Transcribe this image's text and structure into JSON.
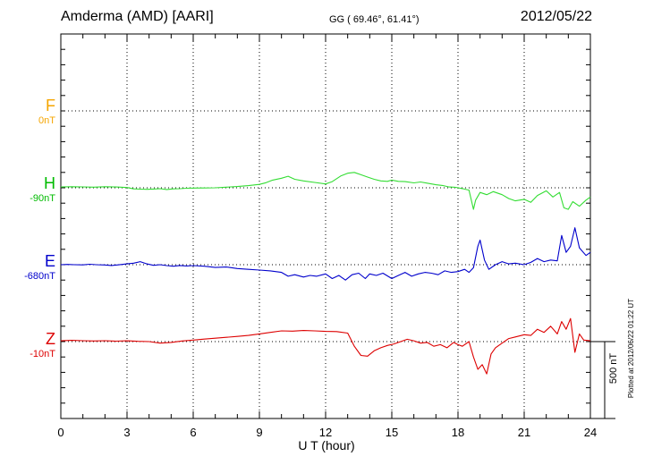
{
  "header": {
    "station": "Amderma (AMD)  [AARI]",
    "coords": "GG ( 69.46°,  61.41°)",
    "date": "2012/05/22"
  },
  "components": [
    {
      "letter": "F",
      "offset": "0nT",
      "color": "#f5a500"
    },
    {
      "letter": "H",
      "offset": "-90nT",
      "color": "#00bb00"
    },
    {
      "letter": "E",
      "offset": "-680nT",
      "color": "#0000cc"
    },
    {
      "letter": "Z",
      "offset": "-10nT",
      "color": "#dd0000"
    }
  ],
  "axis": {
    "xlabel": "U T (hour)",
    "scale_label": "500 nT",
    "plotted_note": "Plotted at 2012/06/22 01:22 UT"
  },
  "chart_data": {
    "type": "line",
    "xlabel": "U T (hour)",
    "xlim": [
      0,
      24
    ],
    "x_ticks": [
      "0",
      "3",
      "6",
      "9",
      "12",
      "15",
      "18",
      "21",
      "24"
    ],
    "y_unit": "nT",
    "scale_bar_nT": 500,
    "grid": true,
    "series": [
      {
        "name": "H",
        "color": "#33dd33",
        "x": [
          0,
          0.5,
          1,
          1.5,
          2,
          2.5,
          3,
          3.3,
          3.6,
          3.9,
          4.2,
          4.5,
          4.8,
          5.1,
          5.4,
          5.7,
          6,
          6.5,
          7,
          7.5,
          8,
          8.5,
          9,
          9.3,
          9.6,
          10,
          10.3,
          10.6,
          11,
          11.5,
          12,
          12.3,
          12.7,
          13,
          13.3,
          13.6,
          13.9,
          14.2,
          14.5,
          14.8,
          15,
          15.3,
          15.6,
          16,
          16.3,
          16.6,
          17,
          17.3,
          17.6,
          17.9,
          18.2,
          18.5,
          18.7,
          18.8,
          19,
          19.3,
          19.6,
          20,
          20.3,
          20.6,
          21,
          21.3,
          21.6,
          22,
          22.3,
          22.6,
          22.8,
          23,
          23.2,
          23.5,
          23.8,
          24
        ],
        "values": [
          5,
          7,
          6,
          4,
          7,
          5,
          2,
          -7,
          -9,
          -10,
          -8,
          -6,
          -11,
          -7,
          -6,
          -3,
          -2,
          -1,
          0,
          4,
          8,
          14,
          22,
          33,
          50,
          62,
          75,
          55,
          45,
          35,
          25,
          40,
          78,
          95,
          100,
          85,
          70,
          55,
          45,
          42,
          50,
          42,
          40,
          32,
          38,
          30,
          20,
          15,
          5,
          3,
          -5,
          -15,
          -140,
          -80,
          -30,
          -45,
          -25,
          -45,
          -70,
          -85,
          -75,
          -95,
          -50,
          -20,
          -60,
          -30,
          -130,
          -140,
          -90,
          -120,
          -80,
          -60
        ]
      },
      {
        "name": "E",
        "color": "#0000cc",
        "x": [
          0,
          0.3,
          0.6,
          1,
          1.3,
          1.6,
          2,
          2.3,
          2.6,
          3,
          3.3,
          3.6,
          3.9,
          4.2,
          4.5,
          4.8,
          5.1,
          5.4,
          5.7,
          6,
          6.5,
          7,
          7.5,
          8,
          8.5,
          9,
          9.5,
          10,
          10.3,
          10.6,
          11,
          11.3,
          11.6,
          12,
          12.3,
          12.6,
          12.9,
          13.2,
          13.5,
          13.8,
          14,
          14.3,
          14.6,
          15,
          15.3,
          15.6,
          15.9,
          16.2,
          16.5,
          16.8,
          17.1,
          17.4,
          17.7,
          18,
          18.3,
          18.5,
          18.7,
          18.9,
          19,
          19.2,
          19.4,
          19.7,
          20,
          20.3,
          20.6,
          21,
          21.3,
          21.6,
          21.9,
          22.2,
          22.5,
          22.7,
          22.9,
          23.1,
          23.3,
          23.5,
          23.8,
          24
        ],
        "values": [
          0,
          2,
          0,
          -1,
          3,
          0,
          -2,
          -5,
          -1,
          5,
          10,
          20,
          5,
          -4,
          0,
          -6,
          -10,
          -5,
          -8,
          -6,
          -10,
          -18,
          -15,
          -25,
          -30,
          -35,
          -40,
          -50,
          -75,
          -65,
          -80,
          -70,
          -75,
          -60,
          -90,
          -70,
          -100,
          -65,
          -55,
          -90,
          -60,
          -70,
          -55,
          -90,
          -70,
          -50,
          -75,
          -60,
          -50,
          -55,
          -65,
          -40,
          -50,
          -45,
          -30,
          -50,
          -20,
          120,
          160,
          30,
          -30,
          0,
          20,
          5,
          10,
          0,
          15,
          40,
          20,
          30,
          25,
          190,
          80,
          120,
          240,
          110,
          60,
          80
        ]
      },
      {
        "name": "Z",
        "color": "#dd0000",
        "x": [
          0,
          0.5,
          1,
          1.5,
          2,
          2.5,
          3,
          3.5,
          4,
          4.5,
          5,
          5.5,
          6,
          6.5,
          7,
          7.5,
          8,
          8.5,
          9,
          9.5,
          10,
          10.5,
          11,
          11.5,
          12,
          12.5,
          13,
          13.3,
          13.6,
          13.9,
          14.2,
          14.5,
          14.8,
          15.1,
          15.4,
          15.7,
          16,
          16.3,
          16.6,
          16.9,
          17.2,
          17.5,
          17.8,
          18,
          18.2,
          18.5,
          18.7,
          18.9,
          19.1,
          19.3,
          19.5,
          19.7,
          20,
          20.3,
          20.6,
          21,
          21.3,
          21.6,
          21.9,
          22.2,
          22.5,
          22.7,
          22.9,
          23.1,
          23.3,
          23.5,
          23.7,
          24
        ],
        "values": [
          5,
          8,
          6,
          4,
          6,
          3,
          5,
          2,
          0,
          -10,
          -5,
          4,
          10,
          16,
          22,
          28,
          34,
          40,
          50,
          60,
          70,
          68,
          72,
          70,
          66,
          65,
          55,
          -30,
          -90,
          -95,
          -60,
          -40,
          -25,
          -15,
          0,
          15,
          5,
          -10,
          -5,
          -30,
          -20,
          -40,
          -5,
          -20,
          -30,
          0,
          -100,
          -180,
          -150,
          -210,
          -80,
          -40,
          -10,
          20,
          30,
          45,
          40,
          80,
          60,
          100,
          50,
          130,
          80,
          150,
          -70,
          50,
          10,
          5
        ]
      }
    ]
  }
}
